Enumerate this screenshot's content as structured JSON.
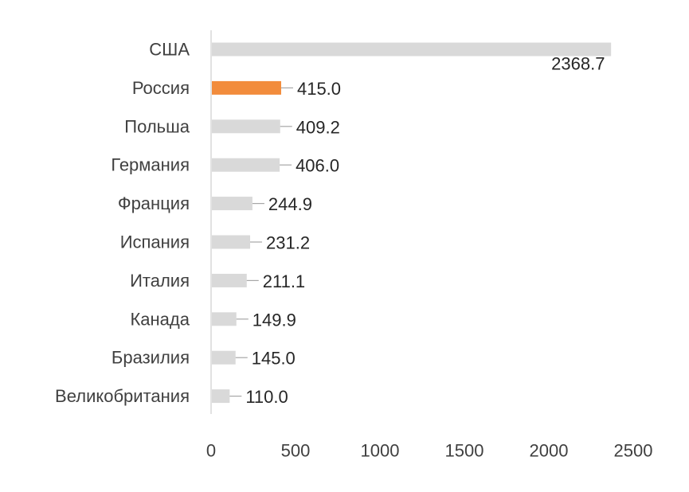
{
  "chart_data": {
    "type": "bar",
    "orientation": "horizontal",
    "title": "",
    "xlabel": "",
    "ylabel": "",
    "categories": [
      "США",
      "Россия",
      "Польша",
      "Германия",
      "Франция",
      "Испания",
      "Италия",
      "Канада",
      "Бразилия",
      "Великобритания"
    ],
    "values": [
      2368.7,
      415.0,
      409.2,
      406.0,
      244.9,
      231.2,
      211.1,
      149.9,
      145.0,
      110.0
    ],
    "value_labels": [
      "2368.7",
      "415.0",
      "409.2",
      "406.0",
      "244.9",
      "231.2",
      "211.1",
      "149.9",
      "145.0",
      "110.0"
    ],
    "xlim": [
      0,
      2500
    ],
    "xticks": [
      0,
      500,
      1000,
      1500,
      2000,
      2500
    ],
    "xtick_labels": [
      "0",
      "500",
      "1000",
      "1500",
      "2000",
      "2500"
    ],
    "grid": false,
    "legend": "none",
    "highlight_category": "Россия",
    "colors": {
      "bar": "#d9d9d9",
      "highlight": "#f28c3c",
      "axis": "#d9d9d9",
      "leader": "#a6a6a6",
      "text": "#404040"
    }
  }
}
